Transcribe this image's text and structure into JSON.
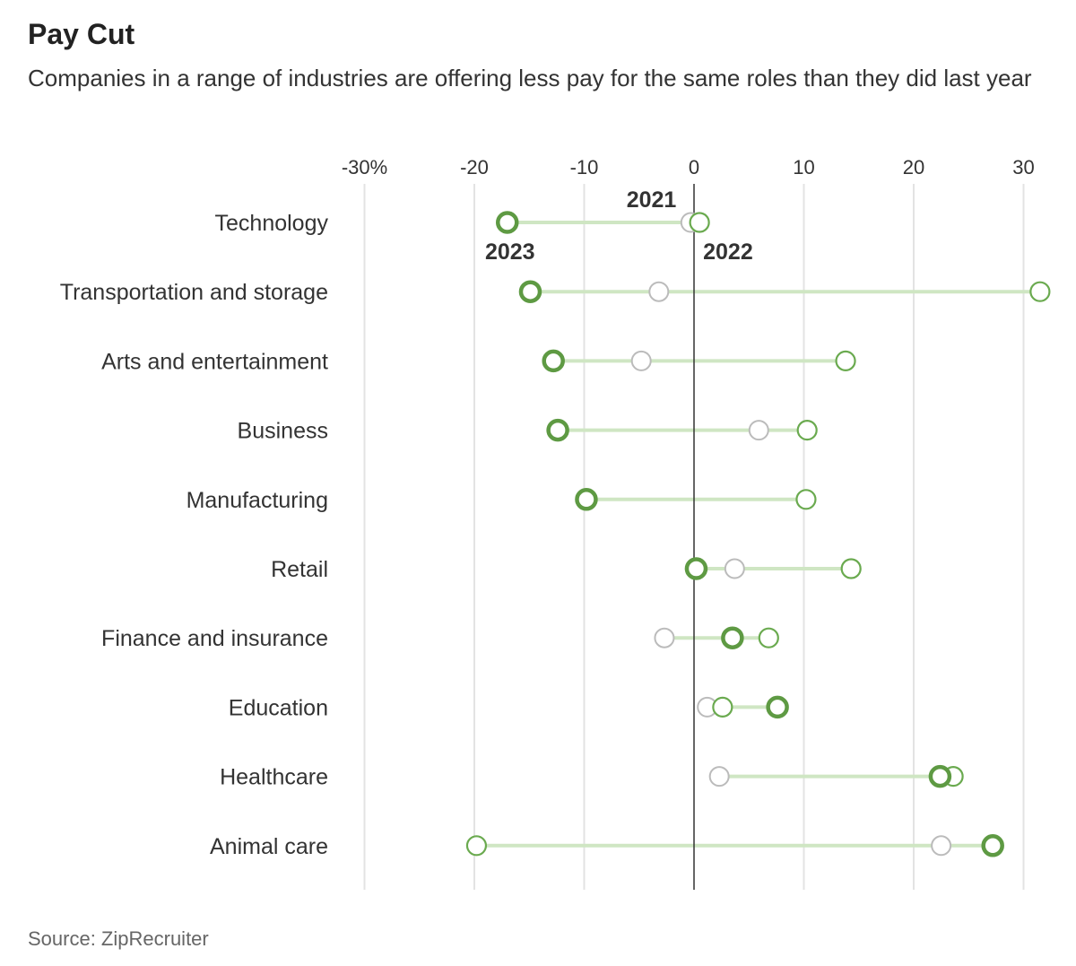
{
  "chart_data": {
    "type": "dot",
    "title": "Pay Cut",
    "subtitle": "Companies in a range of industries are offering less pay for the same roles than they did last year",
    "source": "Source: ZipRecruiter",
    "xlim": [
      -30,
      30
    ],
    "x_ticks": [
      {
        "value": -30,
        "label": "-30%"
      },
      {
        "value": -20,
        "label": "-20"
      },
      {
        "value": -10,
        "label": "-10"
      },
      {
        "value": 0,
        "label": "0"
      },
      {
        "value": 10,
        "label": "10"
      },
      {
        "value": 20,
        "label": "20"
      },
      {
        "value": 30,
        "label": "30"
      }
    ],
    "grid": true,
    "series_labels": {
      "y2021": "2021",
      "y2022": "2022",
      "y2023": "2023"
    },
    "colors": {
      "y2021": "#bbbbbb",
      "y2022": "#6aaa4f",
      "y2023": "#5e9a43",
      "connector": "#cfe6c3",
      "grid": "#e3e3e3",
      "zero_line": "#333333"
    },
    "categories": [
      "Technology",
      "Transportation and storage",
      "Arts and entertainment",
      "Business",
      "Manufacturing",
      "Retail",
      "Finance and insurance",
      "Education",
      "Healthcare",
      "Animal care"
    ],
    "series": [
      {
        "name": "2021",
        "values": [
          -0.3,
          -3.2,
          -4.8,
          5.9,
          null,
          3.7,
          -2.7,
          1.2,
          2.3,
          22.5
        ]
      },
      {
        "name": "2022",
        "values": [
          0.5,
          31.5,
          13.8,
          10.3,
          10.2,
          14.3,
          6.8,
          2.6,
          23.6,
          -19.8
        ]
      },
      {
        "name": "2023",
        "values": [
          -17.0,
          -14.9,
          -12.8,
          -12.4,
          -9.8,
          0.2,
          3.5,
          7.6,
          22.4,
          27.2
        ]
      }
    ]
  }
}
